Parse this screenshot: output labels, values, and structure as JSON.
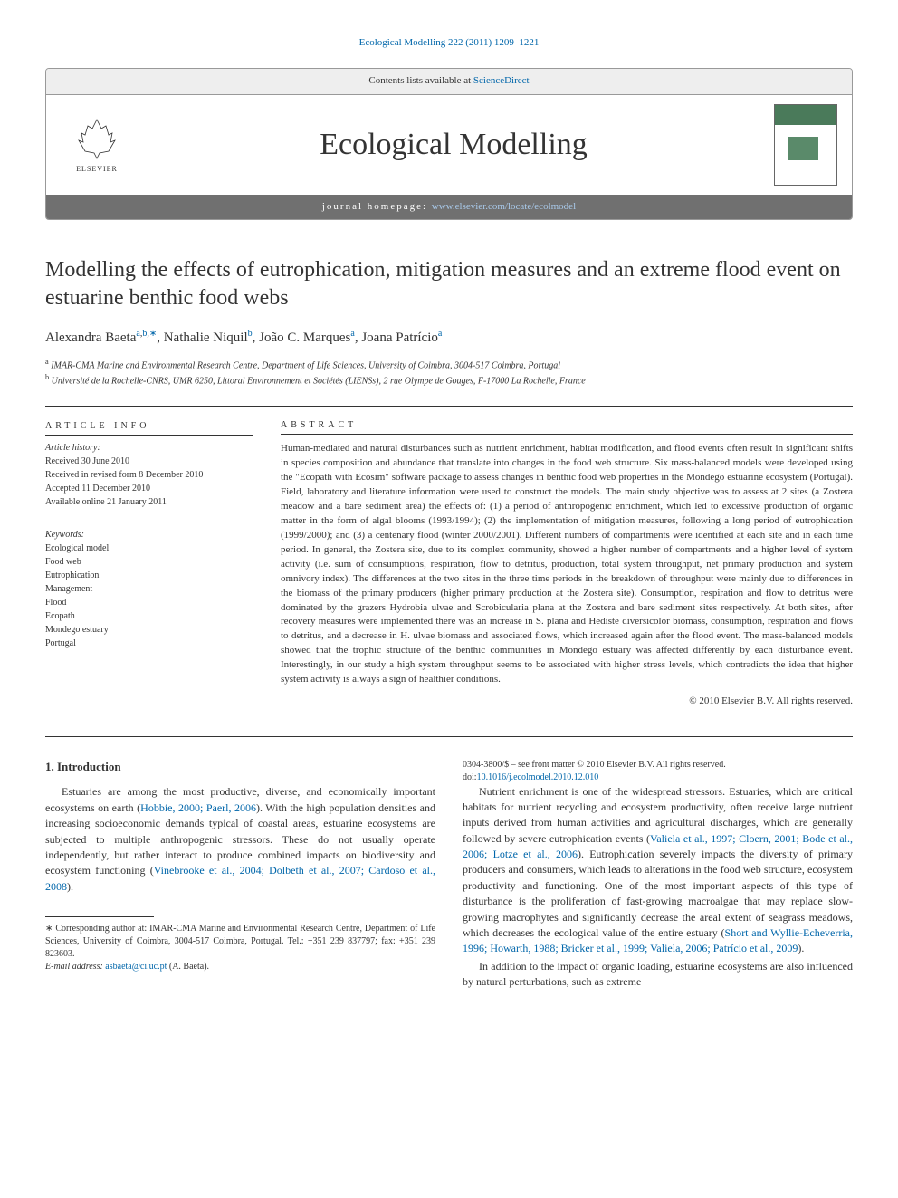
{
  "colors": {
    "link": "#0066aa",
    "text": "#333333",
    "masthead_bar": "#707070",
    "masthead_top_bg": "#eeeeee",
    "border": "#999999",
    "rule": "#333333",
    "bg": "#ffffff"
  },
  "typography": {
    "body_family": "Georgia, 'Times New Roman', serif",
    "title_size_pt": 24,
    "journal_name_size_pt": 34,
    "body_size_pt": 12,
    "abstract_size_pt": 11,
    "small_size_pt": 10
  },
  "top_citation": {
    "text": "Ecological Modelling 222 (2011) 1209–1221",
    "href": "#"
  },
  "masthead": {
    "contents_line_prefix": "Contents lists available at ",
    "contents_link": "ScienceDirect",
    "journal_name": "Ecological Modelling",
    "homepage_label": "journal homepage: ",
    "homepage_url": "www.elsevier.com/locate/ecolmodel",
    "publisher_logo_text": "ELSEVIER"
  },
  "article": {
    "title": "Modelling the effects of eutrophication, mitigation measures and an extreme flood event on estuarine benthic food webs",
    "authors_html": "Alexandra Baeta<sup><a href=\"#\">a</a>,<a href=\"#\">b</a>,<a href=\"#\">∗</a></sup>, Nathalie Niquil<sup><a href=\"#\">b</a></sup>, João C. Marques<sup><a href=\"#\">a</a></sup>, Joana Patrício<sup><a href=\"#\">a</a></sup>",
    "affiliations": [
      {
        "sup": "a",
        "text": "IMAR-CMA Marine and Environmental Research Centre, Department of Life Sciences, University of Coimbra, 3004-517 Coimbra, Portugal"
      },
      {
        "sup": "b",
        "text": "Université de la Rochelle-CNRS, UMR 6250, Littoral Environnement et Sociétés (LIENSs), 2 rue Olympe de Gouges, F-17000 La Rochelle, France"
      }
    ]
  },
  "article_info": {
    "heading": "ARTICLE INFO",
    "history_label": "Article history:",
    "history": [
      "Received 30 June 2010",
      "Received in revised form 8 December 2010",
      "Accepted 11 December 2010",
      "Available online 21 January 2011"
    ],
    "keywords_label": "Keywords:",
    "keywords": [
      "Ecological model",
      "Food web",
      "Eutrophication",
      "Management",
      "Flood",
      "Ecopath",
      "Mondego estuary",
      "Portugal"
    ]
  },
  "abstract": {
    "heading": "ABSTRACT",
    "text": "Human-mediated and natural disturbances such as nutrient enrichment, habitat modification, and flood events often result in significant shifts in species composition and abundance that translate into changes in the food web structure. Six mass-balanced models were developed using the \"Ecopath with Ecosim\" software package to assess changes in benthic food web properties in the Mondego estuarine ecosystem (Portugal). Field, laboratory and literature information were used to construct the models. The main study objective was to assess at 2 sites (a Zostera meadow and a bare sediment area) the effects of: (1) a period of anthropogenic enrichment, which led to excessive production of organic matter in the form of algal blooms (1993/1994); (2) the implementation of mitigation measures, following a long period of eutrophication (1999/2000); and (3) a centenary flood (winter 2000/2001). Different numbers of compartments were identified at each site and in each time period. In general, the Zostera site, due to its complex community, showed a higher number of compartments and a higher level of system activity (i.e. sum of consumptions, respiration, flow to detritus, production, total system throughput, net primary production and system omnivory index). The differences at the two sites in the three time periods in the breakdown of throughput were mainly due to differences in the biomass of the primary producers (higher primary production at the Zostera site). Consumption, respiration and flow to detritus were dominated by the grazers Hydrobia ulvae and Scrobicularia plana at the Zostera and bare sediment sites respectively. At both sites, after recovery measures were implemented there was an increase in S. plana and Hediste diversicolor biomass, consumption, respiration and flows to detritus, and a decrease in H. ulvae biomass and associated flows, which increased again after the flood event. The mass-balanced models showed that the trophic structure of the benthic communities in Mondego estuary was affected differently by each disturbance event. Interestingly, in our study a high system throughput seems to be associated with higher stress levels, which contradicts the idea that higher system activity is always a sign of healthier conditions.",
    "copyright": "© 2010 Elsevier B.V. All rights reserved."
  },
  "body": {
    "section_heading": "1.  Introduction",
    "paragraphs": [
      "Estuaries are among the most productive, diverse, and economically important ecosystems on earth (<a href=\"#\">Hobbie, 2000; Paerl, 2006</a>). With the high population densities and increasing socioeconomic demands typical of coastal areas, estuarine ecosystems are subjected to multiple anthropogenic stressors. These do not usually operate independently, but rather interact to produce combined impacts on biodiversity and ecosystem functioning (<a href=\"#\">Vinebrooke et al., 2004; Dolbeth et al., 2007; Cardoso et al., 2008</a>).",
      "Nutrient enrichment is one of the widespread stressors. Estuaries, which are critical habitats for nutrient recycling and ecosystem productivity, often receive large nutrient inputs derived from human activities and agricultural discharges, which are generally followed by severe eutrophication events (<a href=\"#\">Valiela et al., 1997; Cloern, 2001; Bode et al., 2006; Lotze et al., 2006</a>). Eutrophication severely impacts the diversity of primary producers and consumers, which leads to alterations in the food web structure, ecosystem productivity and functioning. One of the most important aspects of this type of disturbance is the proliferation of fast-growing macroalgae that may replace slow-growing macrophytes and significantly decrease the areal extent of seagrass meadows, which decreases the ecological value of the entire estuary (<a href=\"#\">Short and Wyllie-Echeverria, 1996; Howarth, 1988; Bricker et al., 1999; Valiela, 2006; Patrício et al., 2009</a>).",
      "In addition to the impact of organic loading, estuarine ecosystems are also influenced by natural perturbations, such as extreme"
    ]
  },
  "footnotes": {
    "corresponding": "∗ Corresponding author at: IMAR-CMA Marine and Environmental Research Centre, Department of Life Sciences, University of Coimbra, 3004-517 Coimbra, Portugal. Tel.: +351 239 837797; fax: +351 239 823603.",
    "email_label": "E-mail address:",
    "email": "asbaeta@ci.uc.pt",
    "email_suffix": "(A. Baeta)."
  },
  "bottom": {
    "issn_line": "0304-3800/$ – see front matter © 2010 Elsevier B.V. All rights reserved.",
    "doi_label": "doi:",
    "doi": "10.1016/j.ecolmodel.2010.12.010"
  }
}
